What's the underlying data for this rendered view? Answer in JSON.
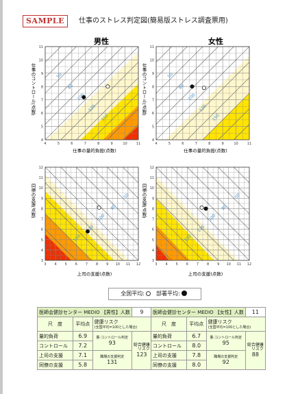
{
  "header": {
    "sample_label": "SAMPLE",
    "title": "仕事のストレス判定図(簡易版ストレス調査票用)"
  },
  "charts": {
    "male_label": "男性",
    "female_label": "女性",
    "top_ylabel": "仕事のコントロール(点数)",
    "top_xlabel": "仕事の量的負担(点数)",
    "bottom_ylabel": "同僚の支援(点数)",
    "bottom_xlabel": "上司の支援(点数)"
  },
  "chart_data": [
    {
      "type": "scatter",
      "title": "男性",
      "xlabel": "仕事の量的負担(点数)",
      "ylabel": "仕事のコントロール(点数)",
      "xlim": [
        4,
        11
      ],
      "ylim": [
        4,
        11
      ],
      "x_ticks": [
        "4",
        "5",
        "6",
        "7",
        "8",
        "9",
        "10",
        "11"
      ],
      "y_ticks": [
        "4",
        "5",
        "6",
        "7",
        "8",
        "9",
        "10",
        "11"
      ],
      "contour_labels": [
        "50",
        "80",
        "100",
        "120",
        "150"
      ],
      "series": [
        {
          "name": "全国平均",
          "marker": "open",
          "x": [
            8.7
          ],
          "y": [
            8.0
          ]
        },
        {
          "name": "部署平均",
          "marker": "filled",
          "x": [
            6.9
          ],
          "y": [
            7.2
          ]
        }
      ]
    },
    {
      "type": "scatter",
      "title": "女性",
      "xlabel": "仕事の量的負担(点数)",
      "ylabel": "仕事のコントロール(点数)",
      "xlim": [
        4,
        11
      ],
      "ylim": [
        4,
        11
      ],
      "x_ticks": [
        "4",
        "5",
        "6",
        "7",
        "8",
        "9",
        "10",
        "11"
      ],
      "y_ticks": [
        "4",
        "5",
        "6",
        "7",
        "8",
        "9",
        "10",
        "11"
      ],
      "contour_labels": [
        "50",
        "80",
        "100",
        "120",
        "150"
      ],
      "series": [
        {
          "name": "全国平均",
          "marker": "open",
          "x": [
            7.6
          ],
          "y": [
            7.9
          ]
        },
        {
          "name": "部署平均",
          "marker": "filled",
          "x": [
            6.7
          ],
          "y": [
            8.0
          ]
        }
      ]
    },
    {
      "type": "scatter",
      "title": "",
      "xlabel": "上司の支援(点数)",
      "ylabel": "同僚の支援(点数)",
      "xlim": [
        3,
        12
      ],
      "ylim": [
        3,
        12
      ],
      "x_ticks": [
        "3",
        "4",
        "5",
        "6",
        "7",
        "8",
        "9",
        "10",
        "11",
        "12"
      ],
      "y_ticks": [
        "3",
        "4",
        "5",
        "6",
        "7",
        "8",
        "9",
        "10",
        "11",
        "12"
      ],
      "contour_labels": [
        "50",
        "80",
        "100",
        "120",
        "150"
      ],
      "series": [
        {
          "name": "全国平均",
          "marker": "open",
          "x": [
            8.2
          ],
          "y": [
            8.1
          ]
        },
        {
          "name": "部署平均",
          "marker": "filled",
          "x": [
            7.1
          ],
          "y": [
            5.8
          ]
        }
      ]
    },
    {
      "type": "scatter",
      "title": "",
      "xlabel": "上司の支援(点数)",
      "ylabel": "同僚の支援(点数)",
      "xlim": [
        3,
        12
      ],
      "ylim": [
        3,
        12
      ],
      "x_ticks": [
        "3",
        "4",
        "5",
        "6",
        "7",
        "8",
        "9",
        "10",
        "11",
        "12"
      ],
      "y_ticks": [
        "3",
        "4",
        "5",
        "6",
        "7",
        "8",
        "9",
        "10",
        "11",
        "12"
      ],
      "contour_labels": [
        "50",
        "80",
        "100",
        "120",
        "150"
      ],
      "series": [
        {
          "name": "全国平均",
          "marker": "open",
          "x": [
            7.4
          ],
          "y": [
            8.1
          ]
        },
        {
          "name": "部署平均",
          "marker": "filled",
          "x": [
            7.8
          ],
          "y": [
            8.0
          ]
        }
      ]
    }
  ],
  "legend": {
    "national": "全国平均:",
    "department": "部署平均:"
  },
  "tables": [
    {
      "title": "医師会健診センター MEDIO 【男性】人数",
      "count": "9",
      "col_measure": "尺　度",
      "col_average": "平均点",
      "col_risk": "健康リスク",
      "col_risk_note": "(全国平均=100とした場合)",
      "group1_note": "量-コントロール判定",
      "group2_note": "職場の支援判定",
      "total_label1": "総合健康",
      "total_label2": "リスク",
      "rows": [
        {
          "name": "量的負荷",
          "avg": "6.9"
        },
        {
          "name": "コントロール",
          "avg": "7.2"
        },
        {
          "name": "上司の支援",
          "avg": "7.1"
        },
        {
          "name": "同僚の支援",
          "avg": "5.8"
        }
      ],
      "risk1": "93",
      "risk2": "131",
      "total": "123"
    },
    {
      "title": "医師会健診センター MEDIO 【女性】人数",
      "count": "11",
      "col_measure": "尺　度",
      "col_average": "平均点",
      "col_risk": "健康リスク",
      "col_risk_note": "(全国平均=100とした場合)",
      "group1_note": "量-コントロール判定",
      "group2_note": "職場の支援判定",
      "total_label1": "総合健康",
      "total_label2": "リスク",
      "rows": [
        {
          "name": "量的負荷",
          "avg": "6.7"
        },
        {
          "name": "コントロール",
          "avg": "8.0"
        },
        {
          "name": "上司の支援",
          "avg": "7.8"
        },
        {
          "name": "同僚の支援",
          "avg": "8.0"
        }
      ],
      "risk1": "95",
      "risk2": "92",
      "total": "88"
    }
  ],
  "colors": {
    "zone_light": "#fff7cc",
    "zone_yellow": "#ffe400",
    "zone_orange": "#ff9a00",
    "zone_red": "#f03000",
    "contour_label": "#4a90c8",
    "table_bg": "#f4ffdc",
    "sample_red": "#c0302c"
  }
}
